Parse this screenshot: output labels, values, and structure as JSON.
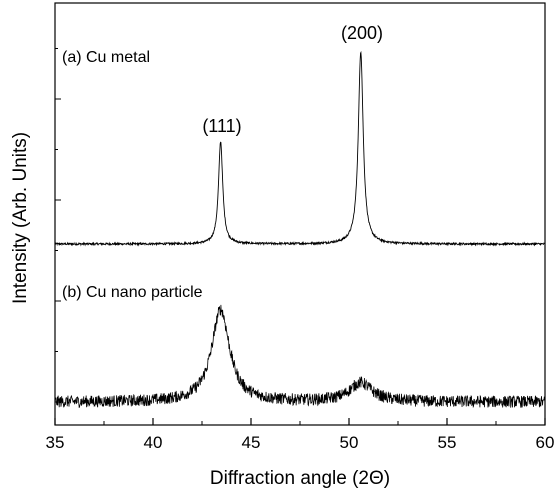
{
  "chart_data": {
    "type": "line",
    "title": "",
    "xlabel": "Diffraction angle (2Θ)",
    "ylabel": "Intensity (Arb. Units)",
    "xlim": [
      35,
      60
    ],
    "x_ticks": [
      35,
      40,
      45,
      50,
      55,
      60
    ],
    "x_tick_labels": [
      "35",
      "40",
      "45",
      "50",
      "55",
      "60"
    ],
    "y_ticks_labeled": false,
    "grid": false,
    "legend": "none",
    "series": [
      {
        "label": "(a) Cu metal",
        "baseline": 0.0,
        "noise": 0.02,
        "peaks": [
          {
            "center": 43.45,
            "height": 2.05,
            "width": 0.13,
            "shape": "lorentzian"
          },
          {
            "center": 50.6,
            "height": 3.85,
            "width": 0.15,
            "shape": "lorentzian"
          }
        ]
      },
      {
        "label": "(b) Cu nano particle",
        "baseline": 0.0,
        "noise": 0.12,
        "peaks": [
          {
            "center": 43.45,
            "height": 1.85,
            "width": 0.55,
            "shape": "lorentzian"
          },
          {
            "center": 50.6,
            "height": 0.38,
            "width": 0.7,
            "shape": "lorentzian"
          }
        ]
      }
    ],
    "annotations": [
      {
        "text": "(111)",
        "x": 43.45
      },
      {
        "text": "(200)",
        "x": 50.6
      }
    ]
  }
}
